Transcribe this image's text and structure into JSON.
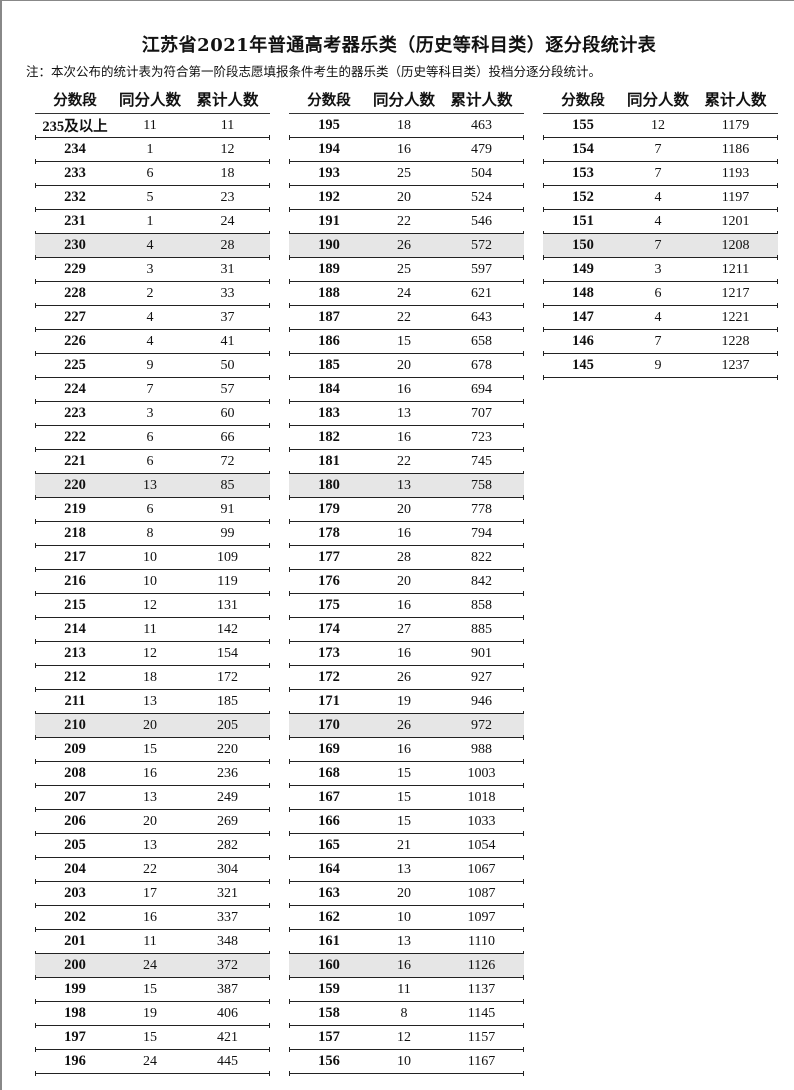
{
  "title": "江苏省2021年普通高考器乐类（历史等科目类）逐分段统计表",
  "note": "注：本次公布的统计表为符合第一阶段志愿填报条件考生的器乐类（历史等科目类）投档分逐分段统计。",
  "headers": [
    "分数段",
    "同分人数",
    "累计人数"
  ],
  "columns": [
    [
      [
        "235及以上",
        "11",
        "11"
      ],
      [
        "234",
        "1",
        "12"
      ],
      [
        "233",
        "6",
        "18"
      ],
      [
        "232",
        "5",
        "23"
      ],
      [
        "231",
        "1",
        "24"
      ],
      [
        "230",
        "4",
        "28"
      ],
      [
        "229",
        "3",
        "31"
      ],
      [
        "228",
        "2",
        "33"
      ],
      [
        "227",
        "4",
        "37"
      ],
      [
        "226",
        "4",
        "41"
      ],
      [
        "225",
        "9",
        "50"
      ],
      [
        "224",
        "7",
        "57"
      ],
      [
        "223",
        "3",
        "60"
      ],
      [
        "222",
        "6",
        "66"
      ],
      [
        "221",
        "6",
        "72"
      ],
      [
        "220",
        "13",
        "85"
      ],
      [
        "219",
        "6",
        "91"
      ],
      [
        "218",
        "8",
        "99"
      ],
      [
        "217",
        "10",
        "109"
      ],
      [
        "216",
        "10",
        "119"
      ],
      [
        "215",
        "12",
        "131"
      ],
      [
        "214",
        "11",
        "142"
      ],
      [
        "213",
        "12",
        "154"
      ],
      [
        "212",
        "18",
        "172"
      ],
      [
        "211",
        "13",
        "185"
      ],
      [
        "210",
        "20",
        "205"
      ],
      [
        "209",
        "15",
        "220"
      ],
      [
        "208",
        "16",
        "236"
      ],
      [
        "207",
        "13",
        "249"
      ],
      [
        "206",
        "20",
        "269"
      ],
      [
        "205",
        "13",
        "282"
      ],
      [
        "204",
        "22",
        "304"
      ],
      [
        "203",
        "17",
        "321"
      ],
      [
        "202",
        "16",
        "337"
      ],
      [
        "201",
        "11",
        "348"
      ],
      [
        "200",
        "24",
        "372"
      ],
      [
        "199",
        "15",
        "387"
      ],
      [
        "198",
        "19",
        "406"
      ],
      [
        "197",
        "15",
        "421"
      ],
      [
        "196",
        "24",
        "445"
      ]
    ],
    [
      [
        "195",
        "18",
        "463"
      ],
      [
        "194",
        "16",
        "479"
      ],
      [
        "193",
        "25",
        "504"
      ],
      [
        "192",
        "20",
        "524"
      ],
      [
        "191",
        "22",
        "546"
      ],
      [
        "190",
        "26",
        "572"
      ],
      [
        "189",
        "25",
        "597"
      ],
      [
        "188",
        "24",
        "621"
      ],
      [
        "187",
        "22",
        "643"
      ],
      [
        "186",
        "15",
        "658"
      ],
      [
        "185",
        "20",
        "678"
      ],
      [
        "184",
        "16",
        "694"
      ],
      [
        "183",
        "13",
        "707"
      ],
      [
        "182",
        "16",
        "723"
      ],
      [
        "181",
        "22",
        "745"
      ],
      [
        "180",
        "13",
        "758"
      ],
      [
        "179",
        "20",
        "778"
      ],
      [
        "178",
        "16",
        "794"
      ],
      [
        "177",
        "28",
        "822"
      ],
      [
        "176",
        "20",
        "842"
      ],
      [
        "175",
        "16",
        "858"
      ],
      [
        "174",
        "27",
        "885"
      ],
      [
        "173",
        "16",
        "901"
      ],
      [
        "172",
        "26",
        "927"
      ],
      [
        "171",
        "19",
        "946"
      ],
      [
        "170",
        "26",
        "972"
      ],
      [
        "169",
        "16",
        "988"
      ],
      [
        "168",
        "15",
        "1003"
      ],
      [
        "167",
        "15",
        "1018"
      ],
      [
        "166",
        "15",
        "1033"
      ],
      [
        "165",
        "21",
        "1054"
      ],
      [
        "164",
        "13",
        "1067"
      ],
      [
        "163",
        "20",
        "1087"
      ],
      [
        "162",
        "10",
        "1097"
      ],
      [
        "161",
        "13",
        "1110"
      ],
      [
        "160",
        "16",
        "1126"
      ],
      [
        "159",
        "11",
        "1137"
      ],
      [
        "158",
        "8",
        "1145"
      ],
      [
        "157",
        "12",
        "1157"
      ],
      [
        "156",
        "10",
        "1167"
      ]
    ],
    [
      [
        "155",
        "12",
        "1179"
      ],
      [
        "154",
        "7",
        "1186"
      ],
      [
        "153",
        "7",
        "1193"
      ],
      [
        "152",
        "4",
        "1197"
      ],
      [
        "151",
        "4",
        "1201"
      ],
      [
        "150",
        "7",
        "1208"
      ],
      [
        "149",
        "3",
        "1211"
      ],
      [
        "148",
        "6",
        "1217"
      ],
      [
        "147",
        "4",
        "1221"
      ],
      [
        "146",
        "7",
        "1228"
      ],
      [
        "145",
        "9",
        "1237"
      ]
    ]
  ],
  "shaded_scores": [
    "230",
    "220",
    "210",
    "200",
    "190",
    "180",
    "170",
    "160",
    "150"
  ],
  "colors": {
    "shade": "#e6e6e6"
  }
}
